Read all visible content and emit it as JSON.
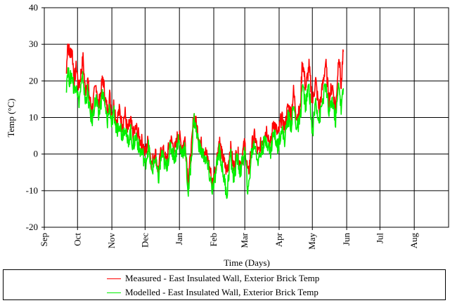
{
  "chart_data": {
    "type": "line",
    "title": "",
    "xlabel": "Time (Days)",
    "ylabel": "Temp (°C)",
    "ylim": [
      -20,
      40
    ],
    "yticks": [
      -20,
      -10,
      0,
      10,
      20,
      30,
      40
    ],
    "x_ticks": [
      "Sep",
      "Oct",
      "Nov",
      "Dec",
      "Jan",
      "Feb",
      "Mar",
      "Apr",
      "May",
      "Jun",
      "Jul",
      "Aug"
    ],
    "grid": true,
    "legend_position": "bottom",
    "series": [
      {
        "name": "Measured - East Insulated Wall, Exterior Brick Temp",
        "color": "#ff0000",
        "points": [
          [
            "Sep 21",
            22
          ],
          [
            "Sep 22",
            31
          ],
          [
            "Sep 24",
            27
          ],
          [
            "Sep 26",
            29
          ],
          [
            "Sep 28",
            20
          ],
          [
            "Sep 30",
            24
          ],
          [
            "Oct 2",
            18
          ],
          [
            "Oct 4",
            22
          ],
          [
            "Oct 6",
            26
          ],
          [
            "Oct 8",
            17
          ],
          [
            "Oct 10",
            21
          ],
          [
            "Oct 12",
            15
          ],
          [
            "Oct 14",
            12
          ],
          [
            "Oct 16",
            16
          ],
          [
            "Oct 18",
            19
          ],
          [
            "Oct 20",
            13
          ],
          [
            "Oct 22",
            17
          ],
          [
            "Oct 24",
            21
          ],
          [
            "Oct 26",
            15
          ],
          [
            "Oct 28",
            12
          ],
          [
            "Oct 30",
            16
          ],
          [
            "Nov 1",
            11
          ],
          [
            "Nov 3",
            14
          ],
          [
            "Nov 5",
            9
          ],
          [
            "Nov 8",
            12
          ],
          [
            "Nov 10",
            8
          ],
          [
            "Nov 13",
            11
          ],
          [
            "Nov 15",
            6
          ],
          [
            "Nov 18",
            9
          ],
          [
            "Nov 20",
            5
          ],
          [
            "Nov 23",
            7
          ],
          [
            "Nov 26",
            4
          ],
          [
            "Nov 29",
            3
          ],
          [
            "Dec 1",
            0
          ],
          [
            "Dec 4",
            4
          ],
          [
            "Dec 7",
            -3
          ],
          [
            "Dec 10",
            1
          ],
          [
            "Dec 13",
            -5
          ],
          [
            "Dec 16",
            2
          ],
          [
            "Dec 20",
            -2
          ],
          [
            "Dec 24",
            4
          ],
          [
            "Dec 28",
            1
          ],
          [
            "Dec 31",
            6
          ],
          [
            "Jan 3",
            2
          ],
          [
            "Jan 6",
            4
          ],
          [
            "Jan 9",
            -7
          ],
          [
            "Jan 12",
            2
          ],
          [
            "Jan 14",
            11
          ],
          [
            "Jan 17",
            7
          ],
          [
            "Jan 20",
            3
          ],
          [
            "Jan 24",
            1
          ],
          [
            "Jan 27",
            -2
          ],
          [
            "Jan 31",
            -8
          ],
          [
            "Feb 3",
            -3
          ],
          [
            "Feb 6",
            4
          ],
          [
            "Feb 8",
            0
          ],
          [
            "Feb 13",
            -5
          ],
          [
            "Feb 16",
            2
          ],
          [
            "Feb 19",
            -4
          ],
          [
            "Feb 22",
            1
          ],
          [
            "Feb 25",
            -3
          ],
          [
            "Mar 1",
            3
          ],
          [
            "Mar 4",
            -6
          ],
          [
            "Mar 7",
            2
          ],
          [
            "Mar 10",
            5
          ],
          [
            "Mar 13",
            0
          ],
          [
            "Mar 17",
            4
          ],
          [
            "Mar 21",
            7
          ],
          [
            "Mar 24",
            2
          ],
          [
            "Mar 27",
            9
          ],
          [
            "Mar 31",
            5
          ],
          [
            "Apr 3",
            10
          ],
          [
            "Apr 6",
            7
          ],
          [
            "Apr 9",
            13
          ],
          [
            "Apr 12",
            11
          ],
          [
            "Apr 14",
            17
          ],
          [
            "Apr 17",
            10
          ],
          [
            "Apr 20",
            12
          ],
          [
            "Apr 22",
            26
          ],
          [
            "Apr 25",
            18
          ],
          [
            "Apr 28",
            24
          ],
          [
            "May 1",
            14
          ],
          [
            "May 4",
            20
          ],
          [
            "May 7",
            12
          ],
          [
            "May 10",
            18
          ],
          [
            "May 13",
            25
          ],
          [
            "May 16",
            15
          ],
          [
            "May 19",
            19
          ],
          [
            "May 22",
            12
          ],
          [
            "May 25",
            28
          ],
          [
            "May 27",
            18
          ],
          [
            "May 29",
            28
          ]
        ]
      },
      {
        "name": "Modelled - East Insulated Wall, Exterior Brick Temp",
        "color": "#00ee00",
        "points": [
          [
            "Sep 21",
            19
          ],
          [
            "Sep 22",
            23
          ],
          [
            "Sep 24",
            20
          ],
          [
            "Sep 26",
            22
          ],
          [
            "Sep 28",
            17
          ],
          [
            "Sep 30",
            20
          ],
          [
            "Oct 2",
            14
          ],
          [
            "Oct 4",
            18
          ],
          [
            "Oct 6",
            21
          ],
          [
            "Oct 8",
            14
          ],
          [
            "Oct 10",
            17
          ],
          [
            "Oct 12",
            12
          ],
          [
            "Oct 14",
            9
          ],
          [
            "Oct 16",
            13
          ],
          [
            "Oct 18",
            15
          ],
          [
            "Oct 20",
            10
          ],
          [
            "Oct 22",
            14
          ],
          [
            "Oct 24",
            17
          ],
          [
            "Oct 26",
            12
          ],
          [
            "Oct 28",
            9
          ],
          [
            "Oct 30",
            13
          ],
          [
            "Nov 1",
            8
          ],
          [
            "Nov 3",
            11
          ],
          [
            "Nov 5",
            6
          ],
          [
            "Nov 8",
            9
          ],
          [
            "Nov 10",
            5
          ],
          [
            "Nov 13",
            8
          ],
          [
            "Nov 15",
            3
          ],
          [
            "Nov 18",
            6
          ],
          [
            "Nov 20",
            2
          ],
          [
            "Nov 23",
            5
          ],
          [
            "Nov 26",
            1
          ],
          [
            "Nov 29",
            0
          ],
          [
            "Dec 1",
            -3
          ],
          [
            "Dec 4",
            2
          ],
          [
            "Dec 7",
            -5
          ],
          [
            "Dec 10",
            -1
          ],
          [
            "Dec 13",
            -7
          ],
          [
            "Dec 16",
            0
          ],
          [
            "Dec 20",
            -4
          ],
          [
            "Dec 24",
            2
          ],
          [
            "Dec 28",
            -1
          ],
          [
            "Dec 31",
            4
          ],
          [
            "Jan 3",
            0
          ],
          [
            "Jan 6",
            2
          ],
          [
            "Jan 9",
            -11
          ],
          [
            "Jan 12",
            0
          ],
          [
            "Jan 14",
            10
          ],
          [
            "Jan 17",
            5
          ],
          [
            "Jan 20",
            1
          ],
          [
            "Jan 24",
            -1
          ],
          [
            "Jan 27",
            -4
          ],
          [
            "Jan 31",
            -10
          ],
          [
            "Feb 3",
            -5
          ],
          [
            "Feb 6",
            2
          ],
          [
            "Feb 8",
            -3
          ],
          [
            "Feb 13",
            -11
          ],
          [
            "Feb 16",
            0
          ],
          [
            "Feb 19",
            -7
          ],
          [
            "Feb 22",
            -1
          ],
          [
            "Feb 25",
            -5
          ],
          [
            "Mar 1",
            1
          ],
          [
            "Mar 4",
            -11
          ],
          [
            "Mar 7",
            0
          ],
          [
            "Mar 10",
            3
          ],
          [
            "Mar 13",
            -2
          ],
          [
            "Mar 17",
            2
          ],
          [
            "Mar 21",
            4
          ],
          [
            "Mar 24",
            0
          ],
          [
            "Mar 27",
            6
          ],
          [
            "Mar 31",
            2
          ],
          [
            "Apr 3",
            7
          ],
          [
            "Apr 6",
            4
          ],
          [
            "Apr 9",
            10
          ],
          [
            "Apr 12",
            8
          ],
          [
            "Apr 14",
            13
          ],
          [
            "Apr 17",
            7
          ],
          [
            "Apr 20",
            9
          ],
          [
            "Apr 22",
            19
          ],
          [
            "Apr 25",
            13
          ],
          [
            "Apr 28",
            19
          ],
          [
            "May 1",
            5
          ],
          [
            "May 4",
            15
          ],
          [
            "May 7",
            9
          ],
          [
            "May 10",
            14
          ],
          [
            "May 13",
            19
          ],
          [
            "May 16",
            11
          ],
          [
            "May 19",
            15
          ],
          [
            "May 22",
            9
          ],
          [
            "May 25",
            20
          ],
          [
            "May 27",
            12
          ],
          [
            "May 29",
            18
          ]
        ]
      }
    ]
  }
}
